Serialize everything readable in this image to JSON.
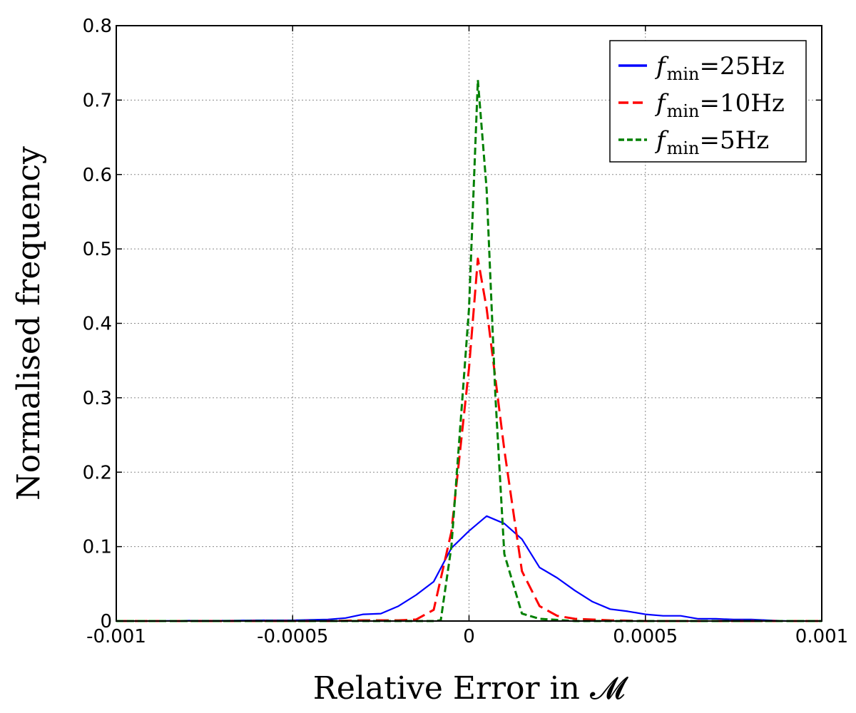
{
  "chart_data": {
    "type": "line",
    "xlabel": "Relative Error in 𝓜",
    "ylabel": "Normalised frequency",
    "xlim": [
      -0.001,
      0.001
    ],
    "ylim": [
      0,
      0.8
    ],
    "grid": true,
    "legend_position": "top-right",
    "x_ticks": [
      {
        "value": -0.001,
        "label": "-0.001"
      },
      {
        "value": -0.0005,
        "label": "-0.0005"
      },
      {
        "value": 0,
        "label": "0"
      },
      {
        "value": 0.0005,
        "label": "0.0005"
      },
      {
        "value": 0.001,
        "label": "0.001"
      }
    ],
    "y_ticks": [
      {
        "value": 0,
        "label": "0"
      },
      {
        "value": 0.1,
        "label": "0.1"
      },
      {
        "value": 0.2,
        "label": "0.2"
      },
      {
        "value": 0.3,
        "label": "0.3"
      },
      {
        "value": 0.4,
        "label": "0.4"
      },
      {
        "value": 0.5,
        "label": "0.5"
      },
      {
        "value": 0.6,
        "label": "0.6"
      },
      {
        "value": 0.7,
        "label": "0.7"
      },
      {
        "value": 0.8,
        "label": "0.8"
      }
    ],
    "series": [
      {
        "legend_symbol": "f",
        "legend_sub": "min",
        "legend_value": "=25Hz",
        "color": "#0000ff",
        "dash": "solid",
        "x": [
          -0.001,
          -0.0009,
          -0.0008,
          -0.0007,
          -0.0006,
          -0.0005,
          -0.00045,
          -0.0004,
          -0.00035,
          -0.0003,
          -0.00025,
          -0.0002,
          -0.00015,
          -0.0001,
          -5e-05,
          0,
          5e-05,
          0.0001,
          0.00015,
          0.0002,
          0.00025,
          0.0003,
          0.00035,
          0.0004,
          0.00045,
          0.0005,
          0.00055,
          0.0006,
          0.00065,
          0.0007,
          0.00075,
          0.0008,
          0.00085,
          0.0009,
          0.00095,
          0.001
        ],
        "y": [
          0.0,
          0.0,
          0.0005,
          0.0005,
          0.001,
          0.001,
          0.0015,
          0.002,
          0.004,
          0.009,
          0.01,
          0.02,
          0.035,
          0.053,
          0.098,
          0.121,
          0.141,
          0.131,
          0.11,
          0.072,
          0.058,
          0.041,
          0.026,
          0.016,
          0.013,
          0.009,
          0.007,
          0.007,
          0.003,
          0.003,
          0.002,
          0.002,
          0.001,
          0.0,
          0.0,
          0.0
        ]
      },
      {
        "legend_symbol": "f",
        "legend_sub": "min",
        "legend_value": "=10Hz",
        "color": "#ff0000",
        "dash": "dashed",
        "x": [
          -0.001,
          -0.0008,
          -0.0006,
          -0.0004,
          -0.0003,
          -0.0002,
          -0.00015,
          -0.0001,
          -5e-05,
          0,
          2.5e-05,
          5e-05,
          0.0001,
          0.00015,
          0.0002,
          0.00025,
          0.0003,
          0.0004,
          0.0005,
          0.0006,
          0.0008,
          0.001
        ],
        "y": [
          0.0,
          0.0,
          0.0,
          0.0,
          0.001,
          0.001,
          0.002,
          0.015,
          0.12,
          0.34,
          0.487,
          0.42,
          0.23,
          0.067,
          0.02,
          0.007,
          0.003,
          0.001,
          0.0,
          0.0,
          0.0,
          0.0
        ]
      },
      {
        "legend_symbol": "f",
        "legend_sub": "min",
        "legend_value": "=5Hz",
        "color": "#008000",
        "dash": "dash-dot",
        "x": [
          -0.001,
          -0.0005,
          -0.0001,
          -8e-05,
          -5e-05,
          0,
          2.5e-05,
          5e-05,
          7.5e-05,
          0.0001,
          0.00015,
          0.0002,
          0.0003,
          0.0005,
          0.001
        ],
        "y": [
          0.0,
          0.0,
          0.0,
          0.001,
          0.1,
          0.42,
          0.727,
          0.58,
          0.3,
          0.09,
          0.01,
          0.003,
          0.0,
          0.0,
          0.0
        ]
      }
    ]
  }
}
